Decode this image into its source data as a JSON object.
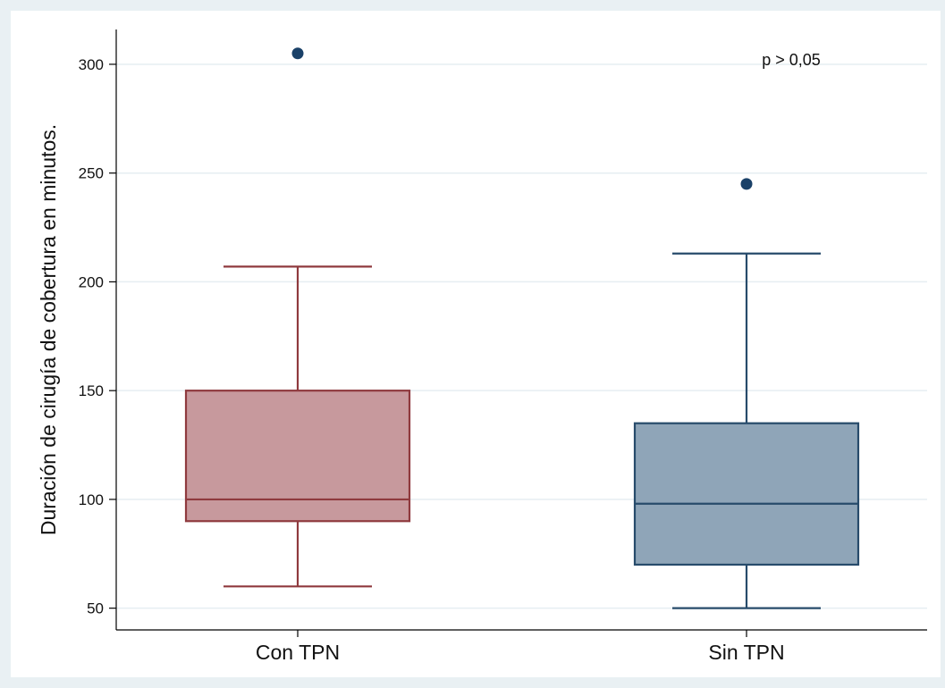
{
  "chart_data": {
    "type": "box",
    "title": "",
    "xlabel": "",
    "ylabel": "Duración de cirugía de cobertura en minutos.",
    "ylim": [
      40,
      316
    ],
    "yticks": [
      50,
      100,
      150,
      200,
      250,
      300
    ],
    "grid": true,
    "legend": "none",
    "annotation": "p > 0,05",
    "categories": [
      "Con TPN",
      "Sin TPN"
    ],
    "series": [
      {
        "category": "Con TPN",
        "whisker_low": 60,
        "q1": 90,
        "median": 100,
        "q3": 150,
        "whisker_high": 207,
        "outliers": [
          305
        ],
        "fill": "#c7999d",
        "stroke": "#8f3a3e"
      },
      {
        "category": "Sin TPN",
        "whisker_low": 50,
        "q1": 70,
        "median": 98,
        "q3": 135,
        "whisker_high": 213,
        "outliers": [
          245
        ],
        "fill": "#8fa5b8",
        "stroke": "#274b6b"
      }
    ],
    "outlier_color": "#1a4168",
    "background": "#e9f0f3",
    "plot_background": "#ffffff",
    "grid_color": "#e6eef2"
  }
}
